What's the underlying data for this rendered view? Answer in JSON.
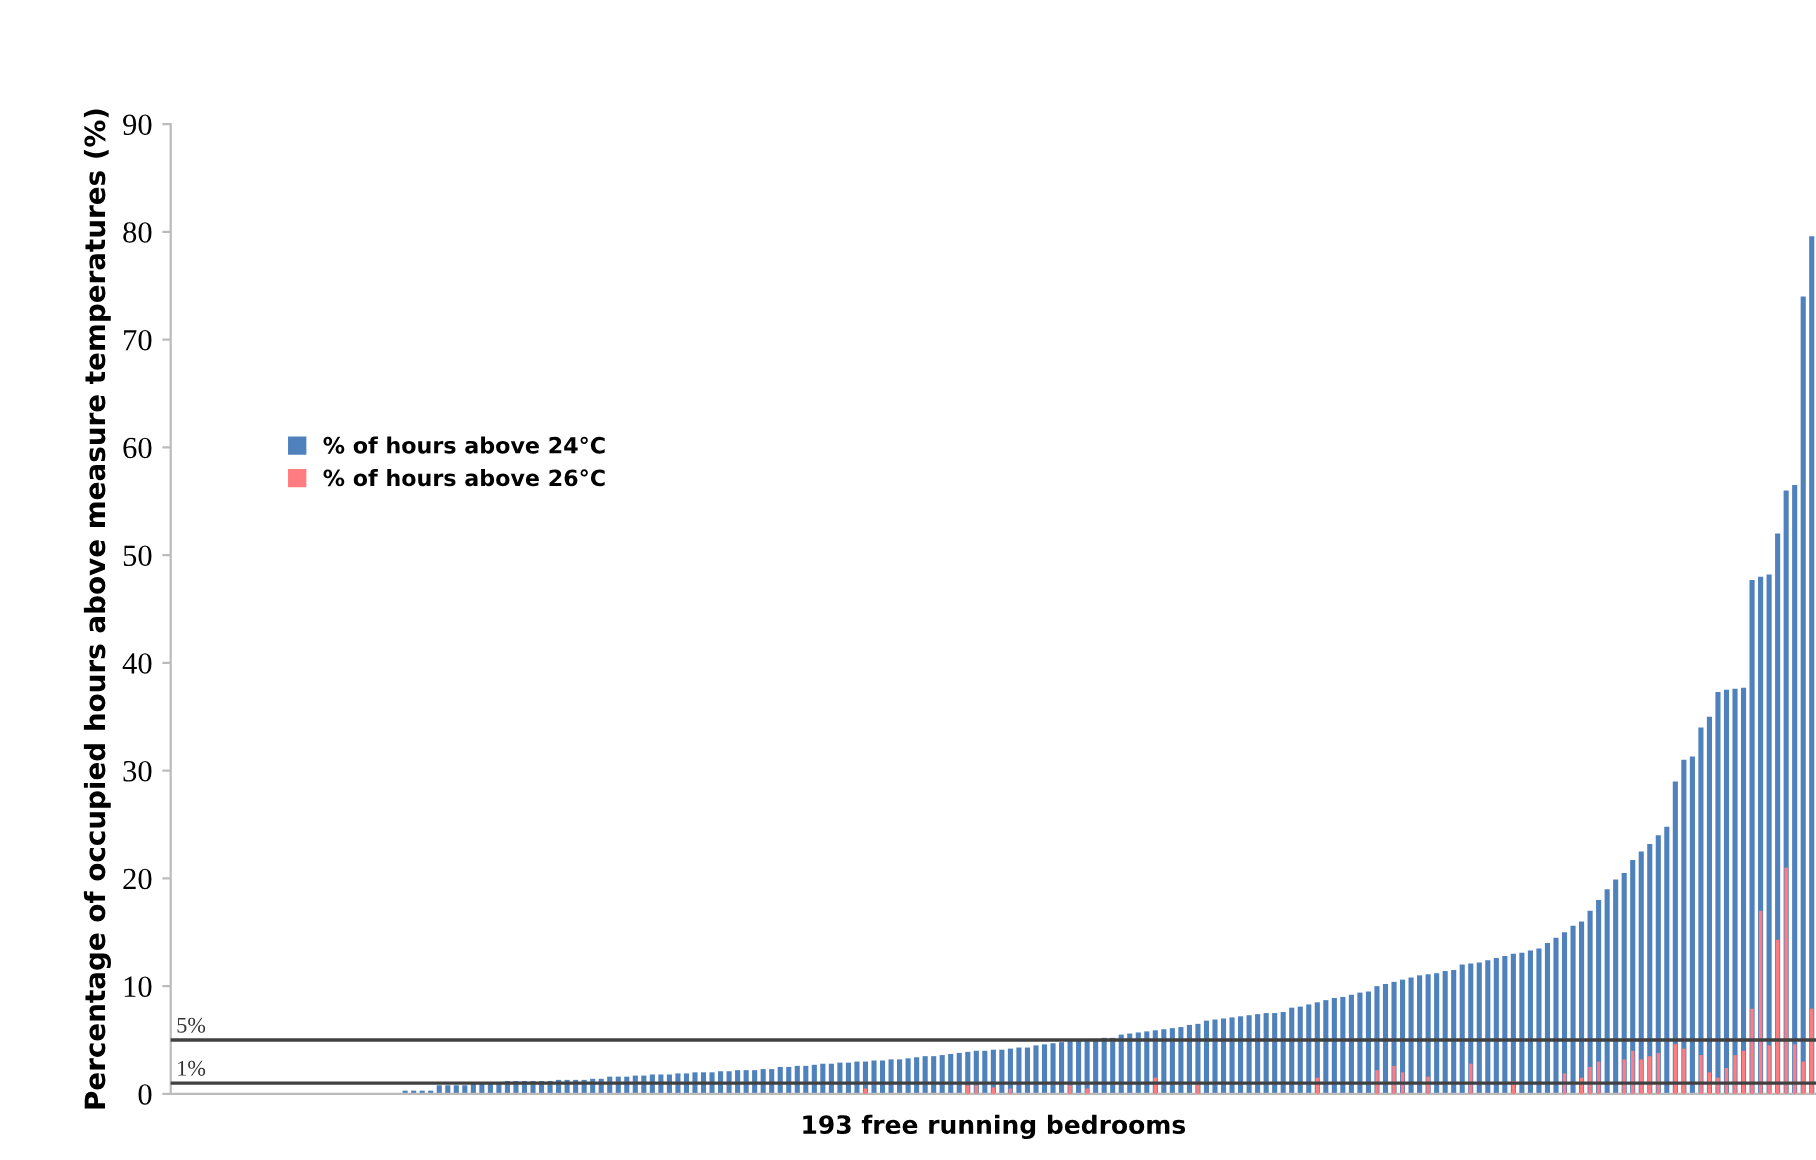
{
  "chart_data": {
    "type": "bar",
    "xlabel": "193 free running bedrooms",
    "ylabel": "Percentage of occupied hours above measure temperatures (%)",
    "categories": [
      null,
      null,
      null,
      null,
      null,
      null,
      null,
      null,
      null,
      null,
      null,
      null,
      null,
      null,
      null,
      null,
      null,
      null,
      null,
      null,
      null,
      null,
      null,
      null,
      null,
      null,
      null,
      null,
      null,
      null,
      null,
      null,
      null,
      null,
      null,
      null,
      null,
      null,
      null,
      null,
      null,
      null,
      null,
      null,
      null,
      null,
      null,
      null,
      null,
      null,
      null,
      null,
      null,
      null,
      null,
      null,
      null,
      null,
      null,
      null,
      null,
      null,
      null,
      null,
      null,
      null,
      null,
      null,
      null,
      null,
      null,
      null,
      null,
      null,
      null,
      null,
      null,
      null,
      null,
      null,
      null,
      null,
      null,
      null,
      null,
      null,
      null,
      null,
      null,
      null,
      null,
      null,
      null,
      null,
      null,
      null,
      null,
      null,
      null,
      null,
      null,
      null,
      null,
      null,
      null,
      null,
      null,
      null,
      null,
      null,
      null,
      null,
      null,
      null,
      null,
      null,
      null,
      null,
      null,
      null,
      null,
      null,
      null,
      null,
      null,
      null,
      null,
      null,
      null,
      null,
      null,
      null,
      null,
      null,
      null,
      null,
      null,
      null,
      null,
      null,
      null,
      null,
      null,
      null,
      null,
      null,
      null,
      null,
      null,
      null,
      null,
      null,
      null,
      null,
      null,
      null,
      null,
      null,
      null,
      null,
      null,
      null,
      null,
      null,
      null,
      null,
      null,
      null,
      null,
      null,
      null,
      null,
      null,
      null,
      null,
      null,
      null,
      null,
      null,
      null,
      null,
      null,
      null,
      null,
      null,
      null,
      null,
      null,
      null,
      null,
      null,
      null,
      null
    ],
    "series": [
      {
        "name": "% of hours above 24°C",
        "color": "#4f81bd",
        "values": [
          0,
          0,
          0,
          0,
          0,
          0,
          0,
          0,
          0,
          0,
          0,
          0,
          0,
          0,
          0,
          0,
          0,
          0,
          0,
          0,
          0,
          0,
          0,
          0,
          0,
          0,
          0,
          0.3,
          0.3,
          0.3,
          0.3,
          0.8,
          0.8,
          0.8,
          0.8,
          1.1,
          1.1,
          1.1,
          1.1,
          1.2,
          1.2,
          1.2,
          1.2,
          1.2,
          1.2,
          1.3,
          1.3,
          1.3,
          1.3,
          1.4,
          1.4,
          1.6,
          1.6,
          1.6,
          1.7,
          1.7,
          1.8,
          1.8,
          1.8,
          1.9,
          1.9,
          2.0,
          2.0,
          2.0,
          2.1,
          2.1,
          2.2,
          2.2,
          2.2,
          2.3,
          2.3,
          2.5,
          2.5,
          2.6,
          2.6,
          2.7,
          2.8,
          2.8,
          2.9,
          2.9,
          3.0,
          3.0,
          3.1,
          3.1,
          3.2,
          3.2,
          3.3,
          3.4,
          3.5,
          3.5,
          3.6,
          3.7,
          3.8,
          3.9,
          4.0,
          4.0,
          4.1,
          4.1,
          4.2,
          4.3,
          4.3,
          4.5,
          4.6,
          4.7,
          4.8,
          4.9,
          5.0,
          5.0,
          5.1,
          5.2,
          5.2,
          5.5,
          5.6,
          5.7,
          5.8,
          5.9,
          6.0,
          6.1,
          6.2,
          6.4,
          6.5,
          6.8,
          6.9,
          7.0,
          7.1,
          7.2,
          7.3,
          7.4,
          7.5,
          7.5,
          7.6,
          8.0,
          8.1,
          8.3,
          8.5,
          8.7,
          8.9,
          9.0,
          9.2,
          9.4,
          9.5,
          10.0,
          10.2,
          10.4,
          10.6,
          10.8,
          11.0,
          11.1,
          11.2,
          11.4,
          11.5,
          12.0,
          12.1,
          12.2,
          12.4,
          12.6,
          12.8,
          13.0,
          13.1,
          13.3,
          13.5,
          14.0,
          14.5,
          15.0,
          15.6,
          16.0,
          17.0,
          18.0,
          19.0,
          19.9,
          20.5,
          21.7,
          22.5,
          23.2,
          24.0,
          24.8,
          29.0,
          31.0,
          31.3,
          34.0,
          35.0,
          37.3,
          37.5,
          37.6,
          37.7,
          47.7,
          48.0,
          48.2,
          52.0,
          56.0,
          56.5,
          74.0,
          79.6
        ]
      },
      {
        "name": "% of hours above 26°C",
        "color": "#ff7c80",
        "values": [
          0,
          0,
          0,
          0,
          0,
          0,
          0,
          0,
          0,
          0,
          0,
          0,
          0,
          0,
          0,
          0,
          0,
          0,
          0,
          0,
          0,
          0,
          0,
          0,
          0,
          0,
          0,
          0,
          0,
          0,
          0,
          0,
          0,
          0,
          0,
          0,
          0,
          0,
          0,
          0,
          0,
          0,
          0,
          0,
          0,
          0,
          0,
          0,
          0,
          0,
          0,
          0,
          0,
          0,
          0,
          0,
          0,
          0,
          0,
          0,
          0,
          0,
          0,
          0,
          0,
          0,
          0,
          0,
          0,
          0,
          0,
          0,
          0,
          0,
          0,
          0,
          0,
          0,
          0,
          0,
          0,
          0.5,
          0,
          0,
          0,
          0,
          0,
          0,
          0,
          0,
          0,
          0,
          0,
          0.8,
          0.8,
          0,
          0.6,
          0,
          0.5,
          0,
          0,
          0,
          0,
          0,
          0,
          0.8,
          0,
          0.5,
          0,
          0,
          0,
          0,
          0,
          0,
          0,
          1.5,
          0,
          0,
          0,
          0,
          1.0,
          0,
          0,
          0,
          0,
          0,
          0,
          0,
          0,
          0,
          0,
          0,
          0,
          0,
          1.5,
          0,
          0,
          0,
          0,
          0,
          0,
          2.2,
          0,
          2.6,
          2.0,
          0,
          0,
          1.6,
          0,
          0,
          0,
          0,
          2.8,
          0,
          0,
          0,
          0,
          1.2,
          0,
          0,
          0,
          0,
          0,
          1.9,
          0,
          1.5,
          2.5,
          3.0,
          0,
          0,
          3.2,
          4.0,
          3.2,
          3.5,
          3.8,
          0,
          4.6,
          4.2,
          0,
          3.6,
          2.0,
          1.5,
          2.4,
          3.6,
          4.0,
          7.9,
          17.0,
          4.5,
          14.3,
          21.0,
          4.6,
          3.0,
          7.9
        ]
      }
    ],
    "ylim": [
      0,
      90
    ],
    "yticks": [
      0,
      10,
      20,
      30,
      40,
      50,
      60,
      70,
      80,
      90
    ],
    "grid": false,
    "legend": "left",
    "ref_lines": [
      {
        "axis": "y",
        "value": 5,
        "label": "5%",
        "color": "#404040"
      },
      {
        "axis": "y",
        "value": 1,
        "label": "1%",
        "color": "#404040"
      }
    ]
  }
}
